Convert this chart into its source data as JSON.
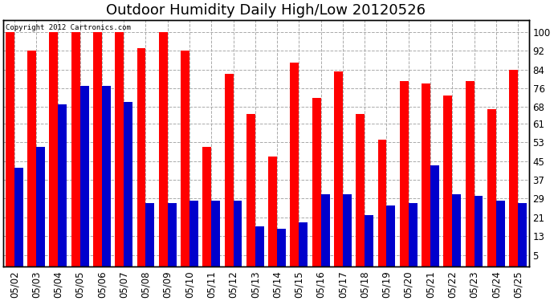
{
  "title": "Outdoor Humidity Daily High/Low 20120526",
  "copyright_text": "Copyright 2012 Cartronics.com",
  "dates": [
    "05/02",
    "05/03",
    "05/04",
    "05/05",
    "05/06",
    "05/07",
    "05/08",
    "05/09",
    "05/10",
    "05/11",
    "05/12",
    "05/13",
    "05/14",
    "05/15",
    "05/16",
    "05/17",
    "05/18",
    "05/19",
    "05/20",
    "05/21",
    "05/22",
    "05/23",
    "05/24",
    "05/25"
  ],
  "highs": [
    100,
    92,
    100,
    100,
    100,
    100,
    93,
    100,
    92,
    51,
    82,
    65,
    47,
    87,
    72,
    83,
    65,
    54,
    79,
    78,
    73,
    79,
    67,
    84
  ],
  "lows": [
    42,
    51,
    69,
    77,
    77,
    70,
    27,
    27,
    28,
    28,
    28,
    17,
    16,
    19,
    31,
    31,
    22,
    26,
    27,
    43,
    31,
    30,
    28,
    27
  ],
  "high_color": "#ff0000",
  "low_color": "#0000cc",
  "bg_color": "#ffffff",
  "plot_bg_color": "#ffffff",
  "grid_color": "#aaaaaa",
  "yticks": [
    5,
    13,
    21,
    29,
    37,
    45,
    53,
    61,
    68,
    76,
    84,
    92,
    100
  ],
  "ylim": [
    0,
    105
  ],
  "title_fontsize": 13,
  "tick_fontsize": 8.5,
  "bar_width": 0.4
}
